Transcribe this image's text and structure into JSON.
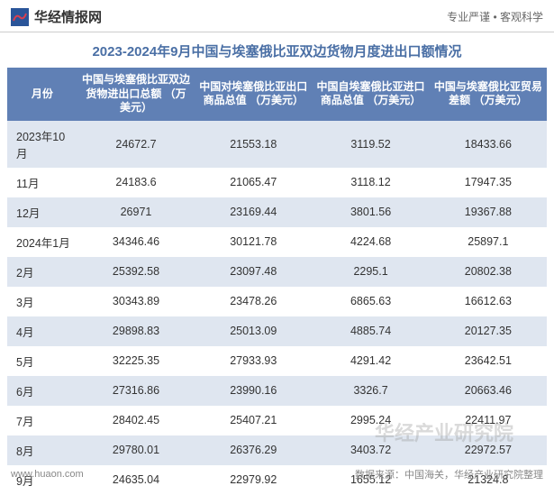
{
  "header": {
    "brand_text": "华经情报网",
    "tagline": "专业严谨  •  客观科学",
    "brand_icon_bg": "#2a5599",
    "brand_icon_fg": "#d94050"
  },
  "title": "2023-2024年9月中国与埃塞俄比亚双边货物月度进出口额情况",
  "table": {
    "columns": [
      "月份",
      "中国与埃塞俄比亚双边货物进出口总额\n（万美元）",
      "中国对埃塞俄比亚出口商品总值\n（万美元）",
      "中国自埃塞俄比亚进口商品总值\n（万美元）",
      "中国与埃塞俄比亚贸易差额\n（万美元）"
    ],
    "rows": [
      [
        "2023年10月",
        "24672.7",
        "21553.18",
        "3119.52",
        "18433.66"
      ],
      [
        "11月",
        "24183.6",
        "21065.47",
        "3118.12",
        "17947.35"
      ],
      [
        "12月",
        "26971",
        "23169.44",
        "3801.56",
        "19367.88"
      ],
      [
        "2024年1月",
        "34346.46",
        "30121.78",
        "4224.68",
        "25897.1"
      ],
      [
        "2月",
        "25392.58",
        "23097.48",
        "2295.1",
        "20802.38"
      ],
      [
        "3月",
        "30343.89",
        "23478.26",
        "6865.63",
        "16612.63"
      ],
      [
        "4月",
        "29898.83",
        "25013.09",
        "4885.74",
        "20127.35"
      ],
      [
        "5月",
        "32225.35",
        "27933.93",
        "4291.42",
        "23642.51"
      ],
      [
        "6月",
        "27316.86",
        "23990.16",
        "3326.7",
        "20663.46"
      ],
      [
        "7月",
        "28402.45",
        "25407.21",
        "2995.24",
        "22411.97"
      ],
      [
        "8月",
        "29780.01",
        "26376.29",
        "3403.72",
        "22972.57"
      ],
      [
        "9月",
        "24635.04",
        "22979.92",
        "1655.12",
        "21324.8"
      ]
    ],
    "header_bg": "#6080b5",
    "header_fg": "#ffffff",
    "row_even_bg": "#dfe6f0",
    "row_odd_bg": "#ffffff",
    "text_color": "#333333"
  },
  "footer": {
    "site": "www.huaon.com",
    "source": "数据来源：中国海关，华经产业研究院整理"
  },
  "watermark": "华经产业研究院"
}
